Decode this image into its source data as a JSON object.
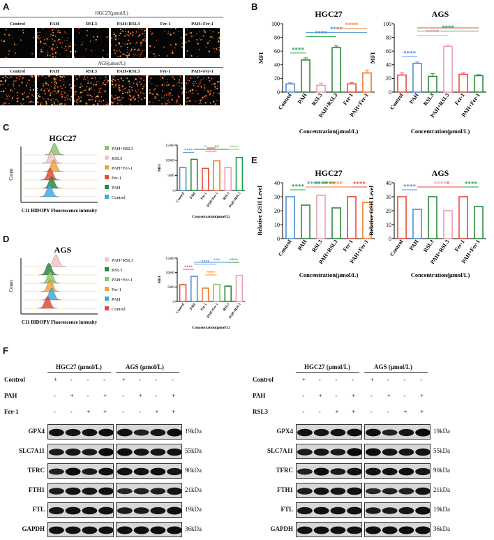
{
  "panel_labels": {
    "a": "A",
    "b": "B",
    "c": "C",
    "d": "D",
    "e": "E",
    "f": "F"
  },
  "microscopy": {
    "row1_title": "HGC27(μmol/L)",
    "row2_title": "AGS(μmol/L)",
    "labels": [
      "Control",
      "PAH",
      "RSL3",
      "PAH+RSL3",
      "Fer-1",
      "PAH+Fer-1"
    ]
  },
  "flow": {
    "hgc_title": "HGC27",
    "ags_title": "AGS",
    "xlabel": "C11 BIDOPY Fluorescence intensity",
    "ylabel": "Count",
    "hgc_legend": [
      "PAH+RSL3",
      "RSL3",
      "PAH+Fer-1",
      "Fer-1",
      "PAH",
      "Control"
    ],
    "hgc_colors": [
      "#8ec46b",
      "#f2c4c4",
      "#f2a33a",
      "#e84a3a",
      "#2a8a3a",
      "#3aaee0"
    ],
    "ags_legend": [
      "PAH+RSL3",
      "RSL3",
      "PAH+Fer-1",
      "Fer-1",
      "PAH",
      "Control"
    ],
    "ags_colors": [
      "#f2c4c4",
      "#2a8a3a",
      "#8ec46b",
      "#f2a33a",
      "#3aaee0",
      "#e84a3a"
    ]
  },
  "western": {
    "left_header": {
      "hgc": "HGC27 (μmol/L)",
      "ags": "AGS (μmol/L)"
    },
    "right_header": {
      "hgc": "HGC27 (μmol/L)",
      "ags": "AGS (μmol/L)"
    },
    "left_conditions": [
      {
        "name": "Control",
        "signs": [
          "+",
          "-",
          "-",
          "-",
          "+",
          "-",
          "-",
          "-"
        ]
      },
      {
        "name": "PAH",
        "signs": [
          "-",
          "+",
          "-",
          "+",
          "-",
          "+",
          "-",
          "+"
        ]
      },
      {
        "name": "Fer-1",
        "signs": [
          "-",
          "-",
          "+",
          "+",
          "-",
          "-",
          "+",
          "+"
        ]
      }
    ],
    "right_conditions": [
      {
        "name": "Control",
        "signs": [
          "+",
          "-",
          "-",
          "-",
          "+",
          "-",
          "-",
          "-"
        ]
      },
      {
        "name": "PAH",
        "signs": [
          "-",
          "+",
          "-",
          "+",
          "-",
          "+",
          "-",
          "+"
        ]
      },
      {
        "name": "RSL3",
        "signs": [
          "-",
          "-",
          "+",
          "+",
          "-",
          "-",
          "+",
          "+"
        ]
      }
    ],
    "proteins": [
      "GPX4",
      "SLC7A11",
      "TFRC",
      "FTH1",
      "FTL",
      "GAPDH"
    ],
    "sizes": [
      "19kDa",
      "55kDa",
      "90kDa",
      "21kDa",
      "19kDa",
      "36kDa"
    ]
  },
  "chart_data": [
    {
      "type": "bar",
      "title": "HGC27",
      "panel": "B",
      "categories": [
        "Control",
        "PAH",
        "RSL3",
        "PAH+RSL3",
        "Fer-1",
        "PAH+Fer-1"
      ],
      "values": [
        12,
        47,
        10,
        65,
        12,
        28
      ],
      "errors": [
        1.5,
        3,
        3,
        2.5,
        2,
        4
      ],
      "colors": [
        "#4a90d9",
        "#2a8a3a",
        "#e8a0b0",
        "#2a8a3a",
        "#e84a3a",
        "#f07a2a"
      ],
      "ylabel": "MFI",
      "xlabel": "Concentration(μmol/L)",
      "ylim": [
        0,
        100
      ],
      "yticks": [
        0,
        20,
        40,
        60,
        80,
        100
      ],
      "significance": [
        {
          "from": 0,
          "to": 1,
          "label": "****",
          "color": "#1aa34a"
        },
        {
          "from": 1,
          "to": 3,
          "label": "****",
          "color": "#1aa34a"
        },
        {
          "from": 1,
          "to": 5,
          "label": "****",
          "color": "#4a90d9"
        },
        {
          "from": 3,
          "to": 5,
          "label": "****",
          "color": "#f07a2a"
        }
      ]
    },
    {
      "type": "bar",
      "title": "AGS",
      "panel": "B",
      "categories": [
        "Control",
        "PAH",
        "RSL3",
        "PAH+RSL3",
        "Fer-1",
        "PAH+Fer-1"
      ],
      "values": [
        25,
        42,
        23,
        67,
        26,
        24
      ],
      "errors": [
        3,
        2,
        4,
        2,
        2,
        1.5
      ],
      "colors": [
        "#e84a3a",
        "#4a90d9",
        "#2a8a3a",
        "#e8a0b0",
        "#e84a3a",
        "#2a8a3a"
      ],
      "ylabel": "MFI",
      "xlabel": "Concentration(μmol/L)",
      "ylim": [
        0,
        100
      ],
      "yticks": [
        0,
        20,
        40,
        60,
        80,
        100
      ],
      "significance": [
        {
          "from": 0,
          "to": 1,
          "label": "****",
          "color": "#4a90d9"
        },
        {
          "from": 1,
          "to": 3,
          "label": "****",
          "color": "#e8a0b0"
        },
        {
          "from": 1,
          "to": 5,
          "label": "****",
          "color": "#1aa34a"
        },
        {
          "from": 1,
          "to": 5,
          "label": "",
          "color": "#e84a3a"
        }
      ]
    },
    {
      "type": "bar",
      "title": "",
      "panel": "C",
      "categories": [
        "Control",
        "PAH",
        "Fer-1",
        "PAH+Fer-1",
        "RSL3",
        "PAH+RSL3"
      ],
      "values": [
        7600,
        10300,
        7300,
        9800,
        7600,
        10900
      ],
      "colors": [
        "#4a90d9",
        "#2a8a3a",
        "#e84a3a",
        "#f07a2a",
        "#e8a0b0",
        "#1aa34a"
      ],
      "ylabel": "MFI",
      "xlabel": "Concentration(μmol/L)",
      "ylim": [
        0,
        15000
      ],
      "yticks": [
        0,
        5000,
        10000,
        15000
      ],
      "significance": [
        {
          "from": 0,
          "to": 1,
          "label": "****",
          "color": "#4a90d9"
        },
        {
          "from": 2,
          "to": 3,
          "label": "****",
          "color": "#e84a3a"
        },
        {
          "from": 1,
          "to": 3,
          "label": "*",
          "color": "#4a90d9"
        },
        {
          "from": 1,
          "to": 5,
          "label": "**",
          "color": "#2a8a3a"
        },
        {
          "from": 4,
          "to": 5,
          "label": "****",
          "color": "#8ec46b"
        }
      ]
    },
    {
      "type": "bar",
      "title": "",
      "panel": "D",
      "categories": [
        "Control",
        "PAH",
        "Fer-1",
        "PAH+Fer-1",
        "RSL3",
        "PAH+RSL3"
      ],
      "values": [
        5800,
        8700,
        4600,
        5900,
        5300,
        9000
      ],
      "colors": [
        "#e84a3a",
        "#4a90d9",
        "#f07a2a",
        "#8ec46b",
        "#2a8a3a",
        "#e8a0b0"
      ],
      "ylabel": "MFI",
      "xlabel": "Concentration(μmol/L)",
      "ylim": [
        0,
        15000
      ],
      "yticks": [
        0,
        5000,
        10000,
        15000
      ],
      "significance": [
        {
          "from": 0,
          "to": 1,
          "label": "****",
          "color": "#e84a3a"
        },
        {
          "from": 2,
          "to": 3,
          "label": "****",
          "color": "#f07a2a"
        },
        {
          "from": 1,
          "to": 3,
          "label": "****",
          "color": "#4a90d9"
        },
        {
          "from": 1,
          "to": 5,
          "label": "***",
          "color": "#4a90d9"
        },
        {
          "from": 4,
          "to": 5,
          "label": "****",
          "color": "#2a8a3a"
        }
      ]
    },
    {
      "type": "bar",
      "title": "HGC27",
      "panel": "E",
      "categories": [
        "Control",
        "PAH",
        "RSL3",
        "PAH+RSL3",
        "Fer-1",
        "PAH+Fer-1"
      ],
      "values": [
        30,
        24,
        31,
        22,
        30,
        26
      ],
      "colors": [
        "#4a90d9",
        "#2a8a3a",
        "#e8a0b0",
        "#2a8a3a",
        "#e84a3a",
        "#f07a2a"
      ],
      "ylabel": "Relative GSH Level",
      "xlabel": "Concentration(μmol/L)",
      "ylim": [
        0,
        40
      ],
      "yticks": [
        0,
        10,
        20,
        30,
        40
      ],
      "significance": [
        {
          "from": 0,
          "to": 1,
          "label": "****",
          "color": "#1aa34a"
        },
        {
          "from": 1,
          "to": 2,
          "label": "****",
          "color": "#4a90d9"
        },
        {
          "from": 2,
          "to": 3,
          "label": "****",
          "color": "#1aa34a"
        },
        {
          "from": 1,
          "to": 3,
          "label": "****",
          "color": "#1aa34a"
        },
        {
          "from": 1,
          "to": 5,
          "label": "****",
          "color": "#f07a2a"
        },
        {
          "from": 4,
          "to": 5,
          "label": "****",
          "color": "#e84a3a"
        }
      ]
    },
    {
      "type": "bar",
      "title": "AGS",
      "panel": "E",
      "categories": [
        "Control",
        "PAH",
        "RSL3",
        "PAH+RSL3",
        "Fer-1",
        "PAH+Fer-1"
      ],
      "values": [
        30,
        21,
        30,
        20,
        30,
        23
      ],
      "colors": [
        "#e84a3a",
        "#4a90d9",
        "#2a8a3a",
        "#e8a0b0",
        "#e84a3a",
        "#2a8a3a"
      ],
      "ylabel": "Relative GSH Level",
      "xlabel": "Concentration(μmol/L)",
      "ylim": [
        0,
        40
      ],
      "yticks": [
        0,
        10,
        20,
        30,
        40
      ],
      "significance": [
        {
          "from": 0,
          "to": 1,
          "label": "****",
          "color": "#4a90d9"
        },
        {
          "from": 2,
          "to": 3,
          "label": "****",
          "color": "#e8a0b0"
        },
        {
          "from": 1,
          "to": 5,
          "label": "*",
          "color": "#e84a3a"
        },
        {
          "from": 4,
          "to": 5,
          "label": "****",
          "color": "#1aa34a"
        }
      ]
    }
  ]
}
